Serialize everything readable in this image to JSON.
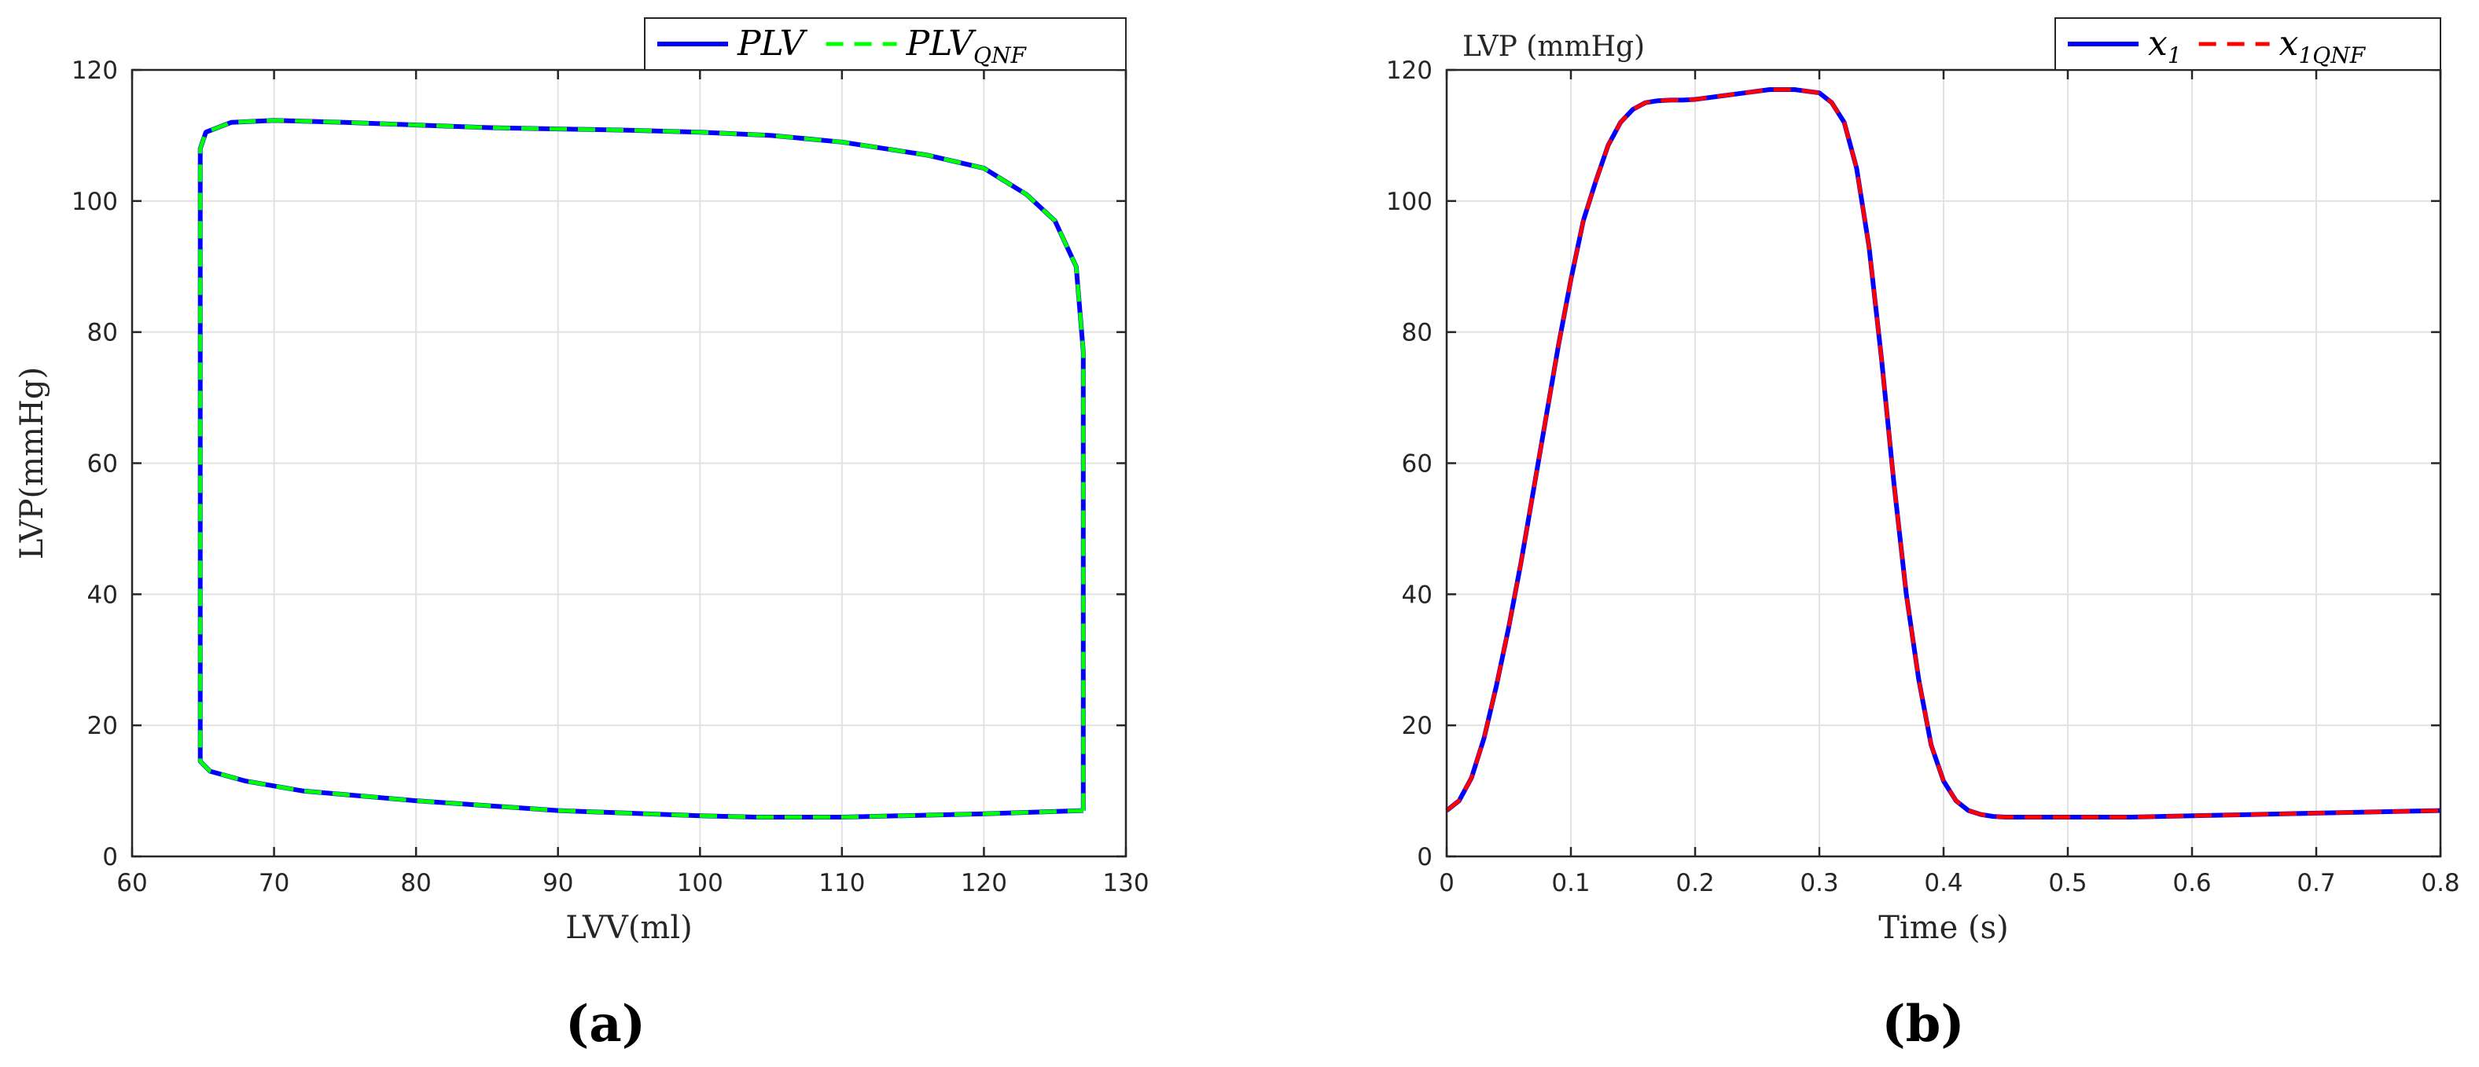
{
  "chart_data": [
    {
      "type": "line",
      "panel_label": "(a)",
      "xlabel": "LVV(ml)",
      "ylabel": "LVP(mmHg)",
      "xlim": [
        60,
        130
      ],
      "ylim": [
        0,
        120
      ],
      "xticks": [
        "60",
        "70",
        "80",
        "90",
        "100",
        "110",
        "120",
        "130"
      ],
      "yticks": [
        "0",
        "20",
        "40",
        "60",
        "80",
        "100",
        "120"
      ],
      "grid": true,
      "legend_position": "top-right",
      "colors": {
        "PLV": "#0000ff",
        "PLV_QNF": "#00ff00"
      },
      "series": [
        {
          "name": "PLV",
          "legend_main": "PLV",
          "legend_sub": "",
          "style": "solid",
          "x": [
            127,
            127,
            126.5,
            125,
            123,
            120,
            116,
            110,
            105,
            100,
            95,
            90,
            85,
            80,
            75,
            70,
            67,
            65.2,
            64.8,
            64.8,
            64.8,
            65.5,
            68,
            72,
            80,
            90,
            100,
            104,
            110,
            120,
            127
          ],
          "y": [
            7,
            77,
            90,
            97,
            101,
            105,
            107,
            109,
            110,
            110.5,
            110.8,
            111,
            111.2,
            111.6,
            112,
            112.3,
            112,
            110.5,
            108,
            60,
            14.5,
            13,
            11.5,
            10,
            8.5,
            7,
            6.2,
            6,
            6,
            6.5,
            7
          ]
        },
        {
          "name": "PLV_QNF",
          "legend_main": "PLV",
          "legend_sub": "QNF",
          "style": "dashed",
          "x": [
            127,
            127,
            126.5,
            125,
            123,
            120,
            116,
            110,
            105,
            100,
            95,
            90,
            85,
            80,
            75,
            70,
            67,
            65.2,
            64.8,
            64.8,
            64.8,
            65.5,
            68,
            72,
            80,
            90,
            100,
            104,
            110,
            120,
            127
          ],
          "y": [
            7,
            77,
            90,
            97,
            101,
            105,
            107,
            109,
            110,
            110.5,
            110.8,
            111,
            111.2,
            111.6,
            112,
            112.3,
            112,
            110.5,
            108,
            60,
            14.5,
            13,
            11.5,
            10,
            8.5,
            7,
            6.2,
            6,
            6,
            6.5,
            7
          ]
        }
      ]
    },
    {
      "type": "line",
      "panel_label": "(b)",
      "title": "LVP (mmHg)",
      "xlabel": "Time (s)",
      "ylabel": "",
      "xlim": [
        0,
        0.8
      ],
      "ylim": [
        0,
        120
      ],
      "xticks": [
        "0",
        "0.1",
        "0.2",
        "0.3",
        "0.4",
        "0.5",
        "0.6",
        "0.7",
        "0.8"
      ],
      "yticks": [
        "0",
        "20",
        "40",
        "60",
        "80",
        "100",
        "120"
      ],
      "grid": true,
      "legend_position": "top-right",
      "colors": {
        "x1": "#0000ff",
        "x1QNF": "#ff0000"
      },
      "series": [
        {
          "name": "x1",
          "legend_main": "x",
          "legend_sub": "1",
          "style": "solid",
          "x": [
            0,
            0.01,
            0.02,
            0.03,
            0.04,
            0.05,
            0.06,
            0.07,
            0.08,
            0.09,
            0.1,
            0.11,
            0.12,
            0.13,
            0.14,
            0.15,
            0.16,
            0.17,
            0.18,
            0.19,
            0.2,
            0.22,
            0.24,
            0.26,
            0.28,
            0.3,
            0.31,
            0.32,
            0.33,
            0.34,
            0.35,
            0.36,
            0.37,
            0.38,
            0.39,
            0.4,
            0.41,
            0.42,
            0.43,
            0.44,
            0.45,
            0.47,
            0.5,
            0.55,
            0.6,
            0.65,
            0.7,
            0.75,
            0.8
          ],
          "y": [
            7,
            8.5,
            12,
            18,
            26,
            35,
            45,
            56,
            67,
            78,
            88,
            97,
            103,
            108.5,
            112,
            114,
            115,
            115.3,
            115.4,
            115.4,
            115.5,
            116,
            116.5,
            117,
            117,
            116.5,
            115,
            112,
            105,
            93,
            76,
            57,
            40,
            27,
            17,
            11.5,
            8.5,
            7,
            6.4,
            6.1,
            6,
            6,
            6,
            6,
            6.2,
            6.4,
            6.6,
            6.8,
            7
          ]
        },
        {
          "name": "x1QNF",
          "legend_main": "x",
          "legend_sub": "1QNF",
          "style": "dashed",
          "x": [
            0,
            0.01,
            0.02,
            0.03,
            0.04,
            0.05,
            0.06,
            0.07,
            0.08,
            0.09,
            0.1,
            0.11,
            0.12,
            0.13,
            0.14,
            0.15,
            0.16,
            0.17,
            0.18,
            0.19,
            0.2,
            0.22,
            0.24,
            0.26,
            0.28,
            0.3,
            0.31,
            0.32,
            0.33,
            0.34,
            0.35,
            0.36,
            0.37,
            0.38,
            0.39,
            0.4,
            0.41,
            0.42,
            0.43,
            0.44,
            0.45,
            0.47,
            0.5,
            0.55,
            0.6,
            0.65,
            0.7,
            0.75,
            0.8
          ],
          "y": [
            7,
            8.5,
            12,
            18,
            26,
            35,
            45,
            56,
            67,
            78,
            88,
            97,
            103,
            108.5,
            112,
            114,
            115,
            115.3,
            115.4,
            115.4,
            115.5,
            116,
            116.5,
            117,
            117,
            116.5,
            115,
            112,
            105,
            93,
            76,
            57,
            40,
            27,
            17,
            11.5,
            8.5,
            7,
            6.4,
            6.1,
            6,
            6,
            6,
            6,
            6.2,
            6.4,
            6.6,
            6.8,
            7
          ]
        }
      ]
    }
  ]
}
